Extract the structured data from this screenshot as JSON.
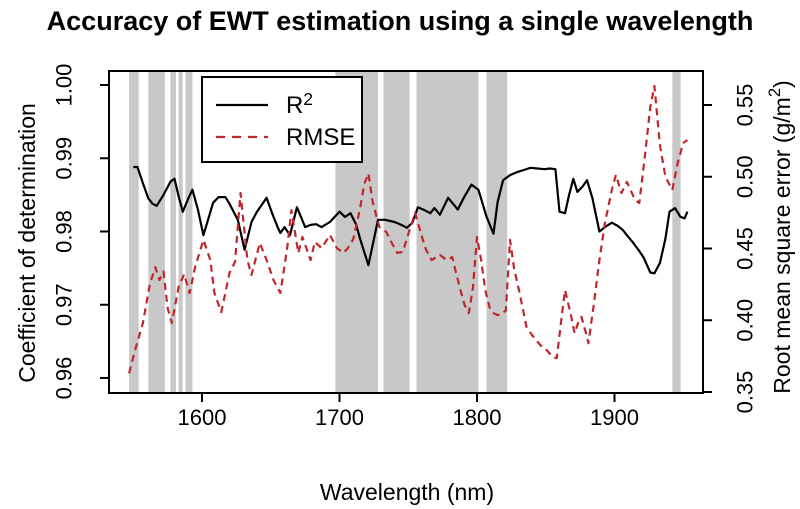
{
  "title": "Accuracy of EWT estimation using a single wavelength",
  "chart_data": {
    "type": "line",
    "title": "Accuracy of EWT estimation using a single wavelength",
    "xlabel": "Wavelength (nm)",
    "ylabel_left": "Coefficient of determination",
    "ylabel_right": "Root mean square error (g/m²)",
    "x_ticks": [
      "1600",
      "1700",
      "1800",
      "1900"
    ],
    "left_ticks": [
      "0.96",
      "0.97",
      "0.98",
      "0.99",
      "1.00"
    ],
    "right_ticks": [
      "0.35",
      "0.40",
      "0.45",
      "0.50",
      "0.55"
    ],
    "xlim": [
      1530,
      1964
    ],
    "ylim_left": [
      0.958,
      1.002
    ],
    "ylim_right": [
      0.35,
      0.575
    ],
    "grid": false,
    "legend_position": "top-left-inside",
    "legend": [
      {
        "label": "R²",
        "style": "solid",
        "color": "#000000"
      },
      {
        "label": "RMSE",
        "style": "dashed",
        "color": "#c0272d"
      }
    ],
    "colors": {
      "r2_line": "#000000",
      "rmse_line": "#c0272d",
      "shaded_band": "#c8c8c8",
      "frame": "#000000"
    },
    "shaded_bands_nm": [
      [
        1547,
        1554
      ],
      [
        1561,
        1573
      ],
      [
        1577,
        1581
      ],
      [
        1583,
        1586
      ],
      [
        1588,
        1593
      ],
      [
        1697,
        1728
      ],
      [
        1732,
        1751
      ],
      [
        1756,
        1801
      ],
      [
        1807,
        1822
      ],
      [
        1942,
        1948
      ]
    ],
    "series": [
      {
        "name": "R²",
        "axis": "left",
        "points": [
          [
            1550,
            0.9888
          ],
          [
            1553,
            0.9888
          ],
          [
            1557,
            0.9866
          ],
          [
            1561,
            0.9845
          ],
          [
            1564,
            0.9838
          ],
          [
            1567,
            0.9835
          ],
          [
            1572,
            0.985
          ],
          [
            1577,
            0.9868
          ],
          [
            1580,
            0.9872
          ],
          [
            1583,
            0.9848
          ],
          [
            1586,
            0.9827
          ],
          [
            1590,
            0.9845
          ],
          [
            1593,
            0.9857
          ],
          [
            1597,
            0.983
          ],
          [
            1601,
            0.9795
          ],
          [
            1605,
            0.982
          ],
          [
            1608,
            0.9839
          ],
          [
            1612,
            0.9847
          ],
          [
            1617,
            0.9847
          ],
          [
            1620,
            0.9838
          ],
          [
            1623,
            0.9827
          ],
          [
            1626,
            0.9816
          ],
          [
            1631,
            0.9775
          ],
          [
            1636,
            0.9813
          ],
          [
            1640,
            0.9827
          ],
          [
            1644,
            0.9838
          ],
          [
            1647,
            0.9846
          ],
          [
            1651,
            0.9825
          ],
          [
            1655,
            0.9806
          ],
          [
            1657,
            0.9798
          ],
          [
            1660,
            0.9806
          ],
          [
            1664,
            0.9795
          ],
          [
            1669,
            0.9833
          ],
          [
            1672,
            0.982
          ],
          [
            1675,
            0.9806
          ],
          [
            1679,
            0.9809
          ],
          [
            1683,
            0.981
          ],
          [
            1687,
            0.9806
          ],
          [
            1693,
            0.9813
          ],
          [
            1700,
            0.9827
          ],
          [
            1704,
            0.982
          ],
          [
            1708,
            0.9825
          ],
          [
            1712,
            0.981
          ],
          [
            1715,
            0.979
          ],
          [
            1721,
            0.9754
          ],
          [
            1728,
            0.9816
          ],
          [
            1733,
            0.9816
          ],
          [
            1740,
            0.9813
          ],
          [
            1745,
            0.9809
          ],
          [
            1749,
            0.9805
          ],
          [
            1753,
            0.9812
          ],
          [
            1757,
            0.9833
          ],
          [
            1762,
            0.9829
          ],
          [
            1766,
            0.9825
          ],
          [
            1769,
            0.9832
          ],
          [
            1773,
            0.9823
          ],
          [
            1779,
            0.9846
          ],
          [
            1786,
            0.983
          ],
          [
            1791,
            0.9848
          ],
          [
            1796,
            0.9864
          ],
          [
            1801,
            0.9857
          ],
          [
            1807,
            0.982
          ],
          [
            1812,
            0.9797
          ],
          [
            1815,
            0.984
          ],
          [
            1819,
            0.987
          ],
          [
            1824,
            0.9877
          ],
          [
            1829,
            0.9881
          ],
          [
            1834,
            0.9884
          ],
          [
            1839,
            0.9887
          ],
          [
            1844,
            0.9886
          ],
          [
            1849,
            0.9885
          ],
          [
            1853,
            0.9886
          ],
          [
            1857,
            0.9885
          ],
          [
            1860,
            0.9827
          ],
          [
            1864,
            0.9825
          ],
          [
            1867,
            0.985
          ],
          [
            1870,
            0.9872
          ],
          [
            1873,
            0.9854
          ],
          [
            1877,
            0.9862
          ],
          [
            1880,
            0.987
          ],
          [
            1884,
            0.9845
          ],
          [
            1889,
            0.98
          ],
          [
            1893,
            0.9806
          ],
          [
            1898,
            0.9812
          ],
          [
            1902,
            0.9808
          ],
          [
            1906,
            0.9802
          ],
          [
            1909,
            0.9795
          ],
          [
            1913,
            0.9786
          ],
          [
            1917,
            0.9776
          ],
          [
            1921,
            0.9765
          ],
          [
            1926,
            0.9744
          ],
          [
            1929,
            0.9743
          ],
          [
            1933,
            0.9757
          ],
          [
            1937,
            0.979
          ],
          [
            1940,
            0.9827
          ],
          [
            1944,
            0.9832
          ],
          [
            1948,
            0.982
          ],
          [
            1951,
            0.9818
          ],
          [
            1953,
            0.9827
          ]
        ]
      },
      {
        "name": "RMSE",
        "axis": "right",
        "points": [
          [
            1547,
            0.363
          ],
          [
            1551,
            0.378
          ],
          [
            1557,
            0.398
          ],
          [
            1562,
            0.425
          ],
          [
            1566,
            0.437
          ],
          [
            1569,
            0.428
          ],
          [
            1572,
            0.434
          ],
          [
            1575,
            0.4086
          ],
          [
            1578,
            0.398
          ],
          [
            1583,
            0.4232
          ],
          [
            1587,
            0.432
          ],
          [
            1591,
            0.419
          ],
          [
            1595,
            0.437
          ],
          [
            1601,
            0.456
          ],
          [
            1606,
            0.442
          ],
          [
            1609,
            0.419
          ],
          [
            1614,
            0.4057
          ],
          [
            1620,
            0.4329
          ],
          [
            1624,
            0.4406
          ],
          [
            1628,
            0.4887
          ],
          [
            1633,
            0.442
          ],
          [
            1636,
            0.4315
          ],
          [
            1642,
            0.4538
          ],
          [
            1647,
            0.442
          ],
          [
            1652,
            0.428
          ],
          [
            1657,
            0.419
          ],
          [
            1662,
            0.451
          ],
          [
            1665,
            0.4767
          ],
          [
            1670,
            0.4469
          ],
          [
            1673,
            0.458
          ],
          [
            1679,
            0.442
          ],
          [
            1682,
            0.4546
          ],
          [
            1687,
            0.4503
          ],
          [
            1693,
            0.4594
          ],
          [
            1698,
            0.4503
          ],
          [
            1703,
            0.4469
          ],
          [
            1706,
            0.4503
          ],
          [
            1710,
            0.4566
          ],
          [
            1715,
            0.478
          ],
          [
            1718,
            0.495
          ],
          [
            1721,
            0.5023
          ],
          [
            1724,
            0.483
          ],
          [
            1727,
            0.472
          ],
          [
            1729,
            0.465
          ],
          [
            1734,
            0.4615
          ],
          [
            1738,
            0.4538
          ],
          [
            1742,
            0.4469
          ],
          [
            1746,
            0.4476
          ],
          [
            1751,
            0.4629
          ],
          [
            1755,
            0.4748
          ],
          [
            1760,
            0.458
          ],
          [
            1763,
            0.449
          ],
          [
            1767,
            0.442
          ],
          [
            1773,
            0.4455
          ],
          [
            1778,
            0.442
          ],
          [
            1782,
            0.444
          ],
          [
            1785,
            0.432
          ],
          [
            1788,
            0.421
          ],
          [
            1791,
            0.4106
          ],
          [
            1794,
            0.405
          ],
          [
            1797,
            0.4225
          ],
          [
            1800,
            0.458
          ],
          [
            1803,
            0.442
          ],
          [
            1806,
            0.421
          ],
          [
            1809,
            0.4092
          ],
          [
            1812,
            0.405
          ],
          [
            1815,
            0.4036
          ],
          [
            1818,
            0.4043
          ],
          [
            1821,
            0.407
          ],
          [
            1824,
            0.456
          ],
          [
            1827,
            0.436
          ],
          [
            1831,
            0.419
          ],
          [
            1836,
            0.3953
          ],
          [
            1840,
            0.3897
          ],
          [
            1844,
            0.385
          ],
          [
            1848,
            0.3806
          ],
          [
            1851,
            0.379
          ],
          [
            1855,
            0.3743
          ],
          [
            1858,
            0.3736
          ],
          [
            1861,
            0.398
          ],
          [
            1864,
            0.421
          ],
          [
            1868,
            0.405
          ],
          [
            1871,
            0.391
          ],
          [
            1874,
            0.3995
          ],
          [
            1876,
            0.4023
          ],
          [
            1879,
            0.392
          ],
          [
            1881,
            0.384
          ],
          [
            1885,
            0.4113
          ],
          [
            1889,
            0.442
          ],
          [
            1893,
            0.4678
          ],
          [
            1898,
            0.4908
          ],
          [
            1901,
            0.5013
          ],
          [
            1905,
            0.4887
          ],
          [
            1909,
            0.4964
          ],
          [
            1912,
            0.4901
          ],
          [
            1915,
            0.4838
          ],
          [
            1918,
            0.4817
          ],
          [
            1922,
            0.5138
          ],
          [
            1926,
            0.5487
          ],
          [
            1929,
            0.5633
          ],
          [
            1933,
            0.5222
          ],
          [
            1937,
            0.5
          ],
          [
            1942,
            0.4908
          ],
          [
            1946,
            0.51
          ],
          [
            1950,
            0.5235
          ],
          [
            1953,
            0.5256
          ]
        ]
      }
    ]
  }
}
